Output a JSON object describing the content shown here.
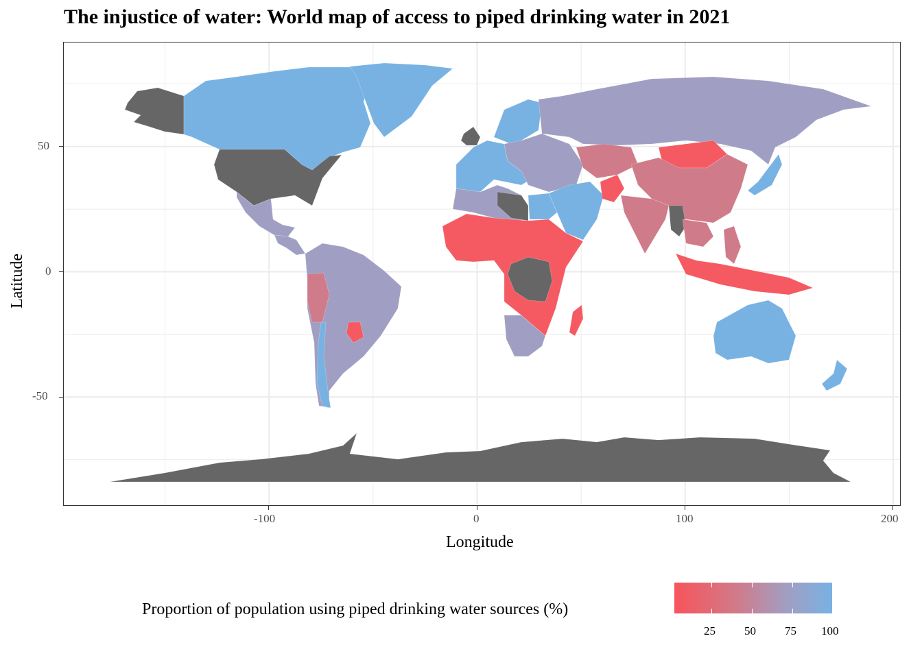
{
  "title": "The injustice of water: World map of access to piped drinking water in 2021",
  "x_axis": {
    "title": "Longitude",
    "ticks": [
      "-100",
      "0",
      "100",
      "200"
    ]
  },
  "y_axis": {
    "title": "Latitude",
    "ticks": [
      "50",
      "0",
      "-50"
    ]
  },
  "legend": {
    "title": "Proportion of population using piped drinking water sources (%)",
    "labels": [
      "25",
      "50",
      "75",
      "100"
    ],
    "low_color": "#f8545b",
    "mid_color": "#a39dc1",
    "high_color": "#78b2e3",
    "missing_color": "#666666"
  },
  "colors": {
    "grid": "#ebebeb",
    "missing": "#666666",
    "high": "#78b2e3",
    "mid": "#a09fc3",
    "lowmid": "#d07b8a",
    "low": "#f55a62"
  },
  "regions": [
    {
      "name": "Alaska",
      "shade": "missing"
    },
    {
      "name": "Canada",
      "shade": "high"
    },
    {
      "name": "Greenland",
      "shade": "high"
    },
    {
      "name": "United States",
      "shade": "missing"
    },
    {
      "name": "Mexico",
      "shade": "mid"
    },
    {
      "name": "Central America",
      "shade": "mid"
    },
    {
      "name": "South America",
      "shade": "mid"
    },
    {
      "name": "Peru",
      "shade": "lowmid"
    },
    {
      "name": "Paraguay",
      "shade": "low"
    },
    {
      "name": "Chile",
      "shade": "high"
    },
    {
      "name": "Western Europe",
      "shade": "high"
    },
    {
      "name": "United Kingdom",
      "shade": "missing"
    },
    {
      "name": "Scandinavia",
      "shade": "high"
    },
    {
      "name": "Eastern Europe",
      "shade": "mid"
    },
    {
      "name": "Russia",
      "shade": "mid"
    },
    {
      "name": "North Africa",
      "shade": "mid"
    },
    {
      "name": "Libya",
      "shade": "missing"
    },
    {
      "name": "Egypt",
      "shade": "high"
    },
    {
      "name": "Sub-Saharan Africa",
      "shade": "low"
    },
    {
      "name": "DR Congo",
      "shade": "missing"
    },
    {
      "name": "Southern Africa",
      "shade": "mid"
    },
    {
      "name": "Madagascar",
      "shade": "low"
    },
    {
      "name": "Arabian Peninsula",
      "shade": "high"
    },
    {
      "name": "Afghanistan",
      "shade": "low"
    },
    {
      "name": "Kazakhstan",
      "shade": "lowmid"
    },
    {
      "name": "Mongolia",
      "shade": "low"
    },
    {
      "name": "China",
      "shade": "lowmid"
    },
    {
      "name": "India",
      "shade": "lowmid"
    },
    {
      "name": "Myanmar",
      "shade": "missing"
    },
    {
      "name": "Southeast Asia",
      "shade": "lowmid"
    },
    {
      "name": "Japan",
      "shade": "high"
    },
    {
      "name": "Indonesia",
      "shade": "low"
    },
    {
      "name": "Philippines",
      "shade": "lowmid"
    },
    {
      "name": "Australia",
      "shade": "high"
    },
    {
      "name": "New Zealand",
      "shade": "high"
    },
    {
      "name": "Antarctica",
      "shade": "missing"
    }
  ]
}
